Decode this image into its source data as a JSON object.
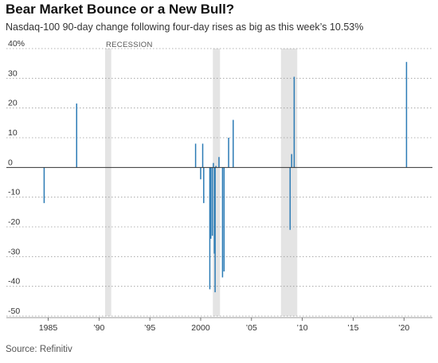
{
  "header": {
    "title": "Bear Market Bounce or a New Bull?",
    "subtitle": "Nasdaq-100 90-day change following four-day rises as big as this week’s 10.53%"
  },
  "footer": {
    "source": "Source: Refinitiv"
  },
  "chart_data": {
    "type": "bar",
    "title": "Bear Market Bounce or a New Bull?",
    "subtitle": "Nasdaq-100 90-day change following four-day rises as big as this week’s 10.53%",
    "xlabel": "",
    "ylabel": "",
    "xlim": [
      1983.0,
      2022.8
    ],
    "ylim": [
      -50,
      40
    ],
    "y_ticks": [
      40,
      30,
      20,
      10,
      0,
      -10,
      -20,
      -30,
      -40,
      -50
    ],
    "y_tick_labels": [
      "40%",
      "30",
      "20",
      "10",
      "0",
      "-10",
      "-20",
      "-30",
      "-40",
      "-50"
    ],
    "x_ticks": [
      1985,
      1990,
      1995,
      2000,
      2005,
      2010,
      2015,
      2020
    ],
    "x_tick_labels": [
      "1985",
      "’90",
      "’95",
      "2000",
      "’05",
      "’10",
      "’15",
      "’20"
    ],
    "grid": "horizontal dotted",
    "colors": {
      "bars": "#2b7bb5",
      "recession": "#e4e4e4",
      "zero_line": "#333333"
    },
    "recession_label": "RECESSION",
    "recessions": [
      [
        1990.6,
        1991.2
      ],
      [
        2001.2,
        2001.9
      ],
      [
        2007.9,
        2009.5
      ]
    ],
    "series": [
      {
        "dates": [
          1984.6,
          1987.8,
          1999.5,
          2000.0,
          2000.2,
          2000.3,
          2000.9,
          2001.0,
          2001.15,
          2001.25,
          2001.35,
          2001.42,
          2001.5,
          2001.8,
          2002.15,
          2002.3,
          2002.75,
          2003.2,
          2008.8,
          2008.95,
          2009.2,
          2020.25
        ],
        "values": [
          -12,
          21.5,
          8,
          -4,
          8,
          -12,
          -41,
          -24,
          -23,
          1.5,
          -29,
          -42,
          0.5,
          3.5,
          -37,
          -35,
          10,
          16,
          -21,
          4.5,
          30.5,
          35.5
        ]
      }
    ]
  }
}
